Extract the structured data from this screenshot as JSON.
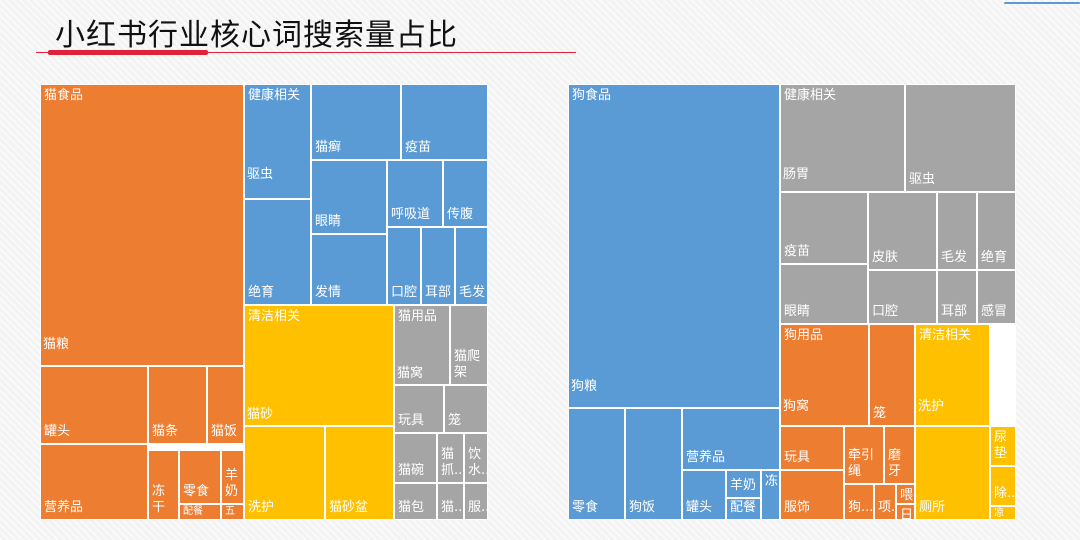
{
  "title": "小红书行业核心词搜索量占比",
  "colors": {
    "orange": "#ed7d31",
    "blue": "#5b9bd5",
    "gray": "#a5a5a5",
    "yellow": "#ffc000",
    "accent_red": "#e2213a"
  },
  "chart_data": [
    {
      "type": "treemap",
      "title": "",
      "tiles": [
        {
          "label": "猫食品",
          "color": "orange"
        },
        {
          "label": "猫粮",
          "color": "orange"
        },
        {
          "label": "罐头",
          "color": "orange"
        },
        {
          "label": "猫条",
          "color": "orange"
        },
        {
          "label": "猫饭",
          "color": "orange"
        },
        {
          "label": "营养品",
          "color": "orange"
        },
        {
          "label": "冻干",
          "color": "orange"
        },
        {
          "label": "零食",
          "color": "orange"
        },
        {
          "label": "羊奶",
          "color": "orange"
        },
        {
          "label": "配餐",
          "color": "orange"
        },
        {
          "label": "五",
          "color": "orange"
        },
        {
          "label": "健康相关",
          "color": "blue"
        },
        {
          "label": "驱虫",
          "color": "blue"
        },
        {
          "label": "猫癣",
          "color": "blue"
        },
        {
          "label": "疫苗",
          "color": "blue"
        },
        {
          "label": "眼睛",
          "color": "blue"
        },
        {
          "label": "呼吸道",
          "color": "blue"
        },
        {
          "label": "传腹",
          "color": "blue"
        },
        {
          "label": "绝育",
          "color": "blue"
        },
        {
          "label": "发情",
          "color": "blue"
        },
        {
          "label": "口腔",
          "color": "blue"
        },
        {
          "label": "耳部",
          "color": "blue"
        },
        {
          "label": "毛发",
          "color": "blue"
        },
        {
          "label": "清洁相关",
          "color": "yellow"
        },
        {
          "label": "猫砂",
          "color": "yellow"
        },
        {
          "label": "洗护",
          "color": "yellow"
        },
        {
          "label": "猫砂盆",
          "color": "yellow"
        },
        {
          "label": "猫用品",
          "color": "gray"
        },
        {
          "label": "猫窝",
          "color": "gray"
        },
        {
          "label": "猫爬架",
          "color": "gray"
        },
        {
          "label": "玩具",
          "color": "gray"
        },
        {
          "label": "笼",
          "color": "gray"
        },
        {
          "label": "猫碗",
          "color": "gray"
        },
        {
          "label": "猫抓...",
          "color": "gray"
        },
        {
          "label": "饮水...",
          "color": "gray"
        },
        {
          "label": "猫包",
          "color": "gray"
        },
        {
          "label": "猫...",
          "color": "gray"
        },
        {
          "label": "服...",
          "color": "gray"
        }
      ]
    },
    {
      "type": "treemap",
      "title": "",
      "tiles": [
        {
          "label": "狗食品",
          "color": "blue"
        },
        {
          "label": "狗粮",
          "color": "blue"
        },
        {
          "label": "零食",
          "color": "blue"
        },
        {
          "label": "狗饭",
          "color": "blue"
        },
        {
          "label": "营养品",
          "color": "blue"
        },
        {
          "label": "罐头",
          "color": "blue"
        },
        {
          "label": "羊奶",
          "color": "blue"
        },
        {
          "label": "配餐",
          "color": "blue"
        },
        {
          "label": "冻",
          "color": "blue"
        },
        {
          "label": "健康相关",
          "color": "gray"
        },
        {
          "label": "肠胃",
          "color": "gray"
        },
        {
          "label": "驱虫",
          "color": "gray"
        },
        {
          "label": "疫苗",
          "color": "gray"
        },
        {
          "label": "皮肤",
          "color": "gray"
        },
        {
          "label": "毛发",
          "color": "gray"
        },
        {
          "label": "绝育",
          "color": "gray"
        },
        {
          "label": "眼睛",
          "color": "gray"
        },
        {
          "label": "口腔",
          "color": "gray"
        },
        {
          "label": "耳部",
          "color": "gray"
        },
        {
          "label": "感冒",
          "color": "gray"
        },
        {
          "label": "狗用品",
          "color": "orange"
        },
        {
          "label": "狗窝",
          "color": "orange"
        },
        {
          "label": "笼",
          "color": "orange"
        },
        {
          "label": "玩具",
          "color": "orange"
        },
        {
          "label": "牵引绳",
          "color": "orange"
        },
        {
          "label": "磨牙",
          "color": "orange"
        },
        {
          "label": "服饰",
          "color": "orange"
        },
        {
          "label": "狗...",
          "color": "orange"
        },
        {
          "label": "项...",
          "color": "orange"
        },
        {
          "label": "喂...",
          "color": "orange"
        },
        {
          "label": "日",
          "color": "orange"
        },
        {
          "label": "清洁相关",
          "color": "yellow"
        },
        {
          "label": "洗护",
          "color": "yellow"
        },
        {
          "label": "尿垫",
          "color": "yellow"
        },
        {
          "label": "除...",
          "color": "yellow"
        },
        {
          "label": "厕所",
          "color": "yellow"
        },
        {
          "label": "凉",
          "color": "yellow"
        }
      ]
    }
  ]
}
